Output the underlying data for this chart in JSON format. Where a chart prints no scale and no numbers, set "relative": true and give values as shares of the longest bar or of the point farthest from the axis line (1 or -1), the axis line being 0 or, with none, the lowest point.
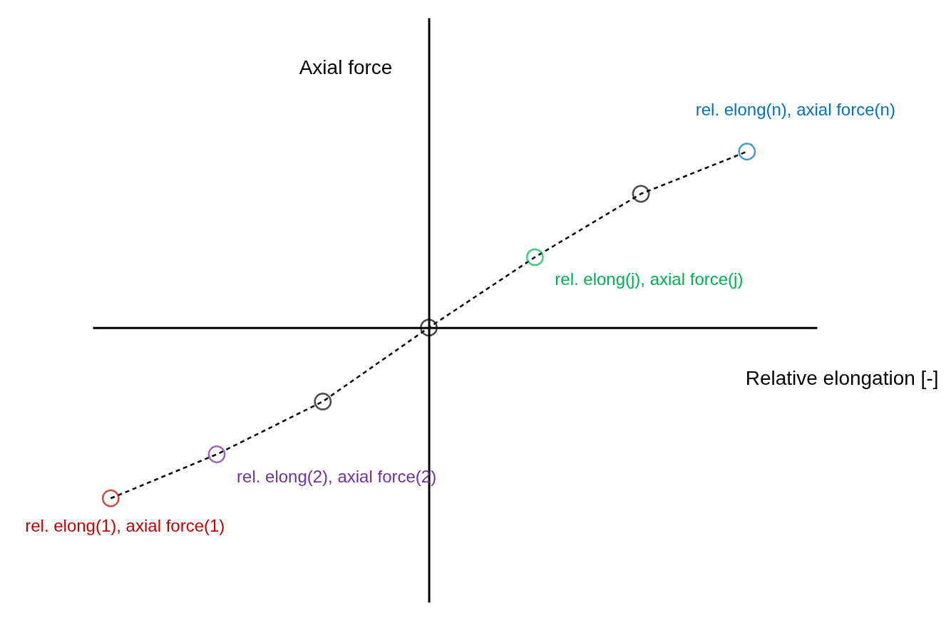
{
  "chart_data": {
    "type": "line",
    "relative": true,
    "xlabel": "Relative elongation [-]",
    "ylabel": "Axial force",
    "categories": [
      null,
      null,
      null,
      null,
      null,
      null,
      null
    ],
    "series": [
      {
        "color": "#000000",
        "values": [
          -0.97,
          -0.72,
          -0.42,
          0,
          0.4,
          0.76,
          1
        ],
        "colors": [
          "#c00000",
          "#7030a0",
          "#000000",
          "#000000",
          "#00b050",
          "#000000",
          "#0070c0"
        ]
      }
    ],
    "line_style": "dashed",
    "marker": "circle",
    "grid": false,
    "annotations": [
      "rel. elong(n), axial force(n)",
      "rel. elong(j), axial force(j)",
      "rel. elong(2), axial force(2)",
      "rel. elong(1), axial force(1)"
    ]
  }
}
